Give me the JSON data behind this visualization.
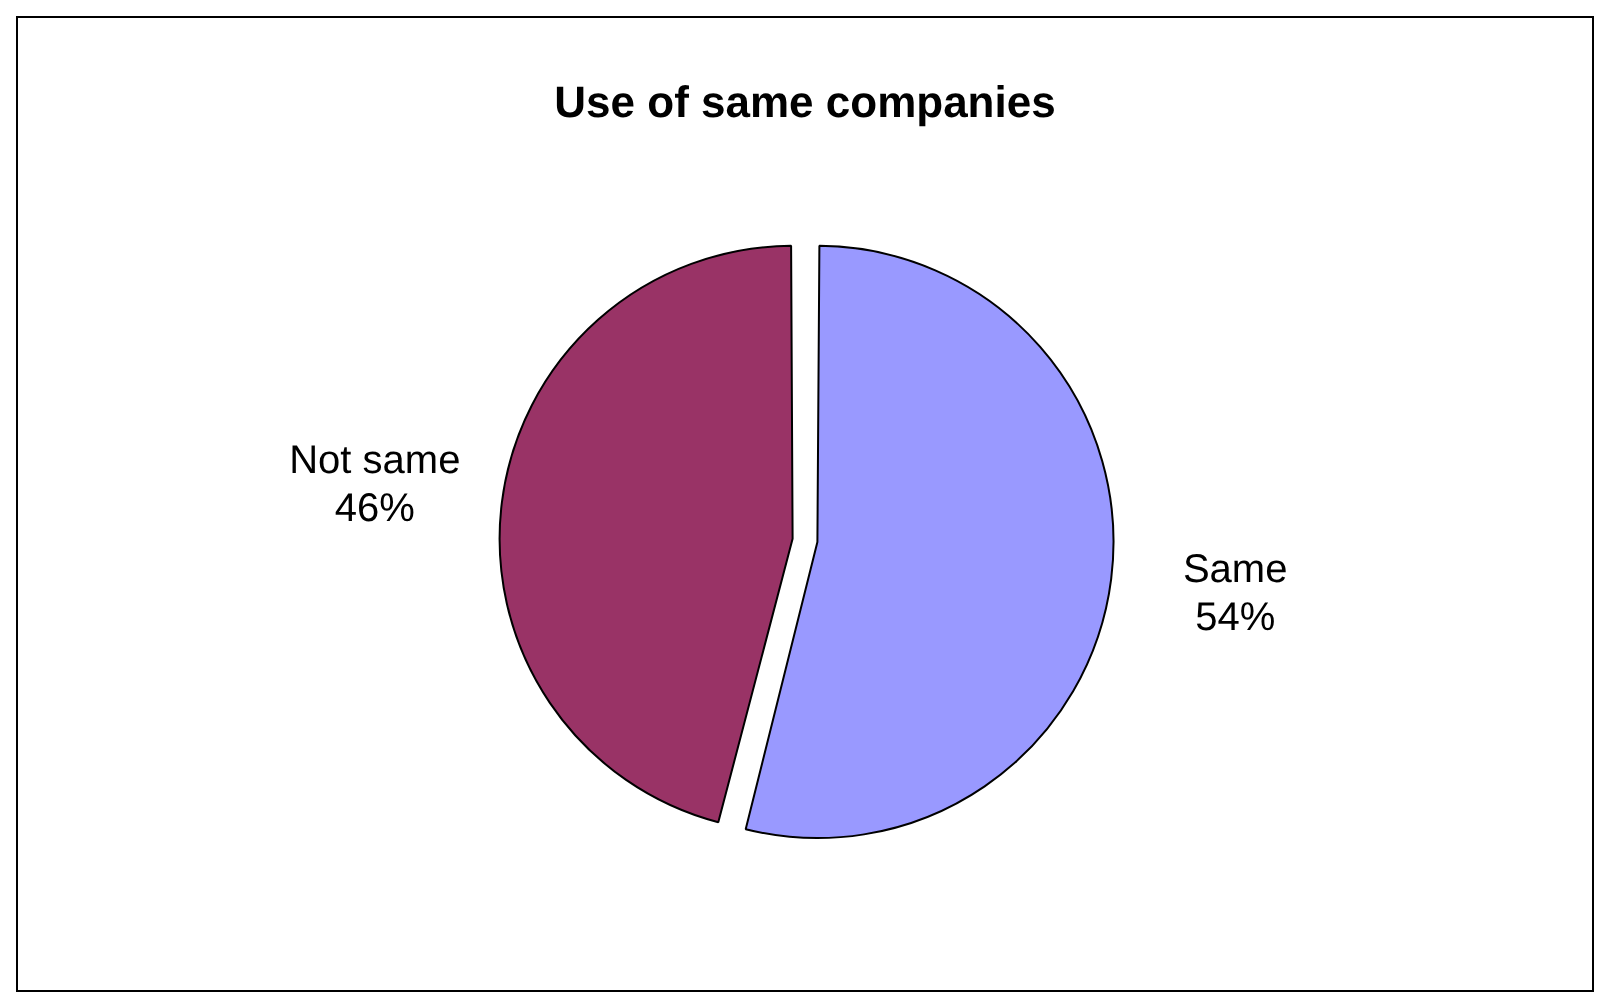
{
  "chart_data": {
    "type": "pie",
    "title": "Use of same companies",
    "categories": [
      "Same",
      "Not same"
    ],
    "values": [
      54,
      46
    ],
    "value_labels": [
      "54%",
      "46%"
    ],
    "colors": [
      "#9999ff",
      "#993366"
    ],
    "legend": false
  }
}
